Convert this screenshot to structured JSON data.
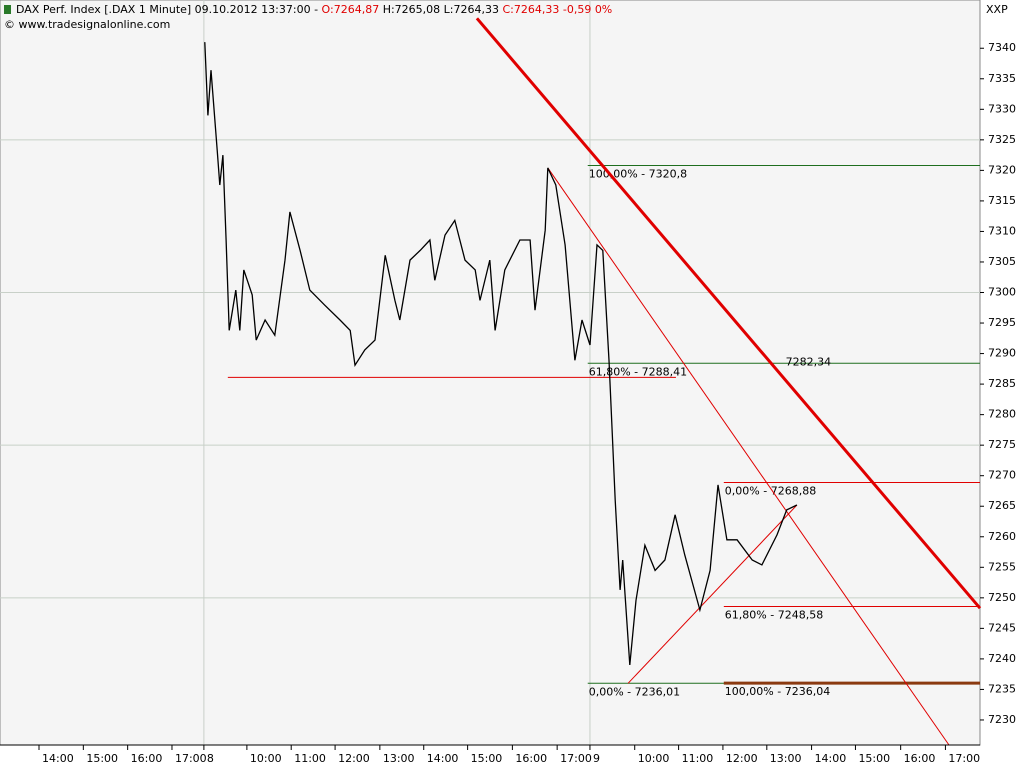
{
  "chart_data": {
    "type": "line",
    "title": "DAX Perf. Index [.DAX  1 Minute] 09.10.2012 13:37:00 - ",
    "ohlc": [
      {
        "text": "O:7264,87",
        "color": "#e00000"
      },
      {
        "text": " H:7265,08 L:7264,33 ",
        "color": "#000000"
      },
      {
        "text": "C:7264,33 -0,59 0%",
        "color": "#e00000"
      }
    ],
    "copyright": "© www.tradesignalonline.com",
    "symbol_label": "XXP",
    "color": "#000000",
    "x": [
      3.74,
      3.81,
      3.88,
      4.02,
      4.08,
      4.15,
      4.22,
      4.29,
      4.44,
      4.53,
      4.62,
      4.81,
      4.9,
      5.1,
      5.32,
      5.55,
      5.66,
      5.89,
      6.11,
      6.45,
      6.79,
      7.02,
      7.13,
      7.35,
      7.58,
      7.81,
      8.03,
      8.14,
      8.37,
      8.6,
      8.82,
      8.93,
      9.16,
      9.38,
      9.61,
      9.84,
      9.95,
      10.17,
      10.29,
      10.51,
      10.85,
      11.08,
      11.19,
      11.42,
      11.48,
      11.66,
      11.87,
      12.09,
      12.25,
      12.43,
      12.59,
      12.72,
      12.86,
      12.93,
      13.0,
      13.11,
      13.17,
      13.33,
      13.47,
      13.67,
      13.9,
      14.12,
      14.35,
      14.57,
      14.91,
      15.14,
      15.32,
      15.52,
      15.75,
      16.09,
      16.31,
      16.65,
      16.87,
      17.1
    ],
    "values": [
      7341.0,
      7329.0,
      7336.4,
      7323.3,
      7317.6,
      7322.5,
      7308.6,
      7293.8,
      7300.4,
      7293.8,
      7303.7,
      7299.6,
      7292.2,
      7295.5,
      7293.0,
      7305.3,
      7313.2,
      7306.9,
      7300.4,
      7297.9,
      7295.5,
      7293.8,
      7288.1,
      7290.6,
      7292.2,
      7306.1,
      7298.7,
      7295.5,
      7305.3,
      7306.9,
      7308.6,
      7302.0,
      7309.4,
      7311.8,
      7305.3,
      7303.7,
      7298.7,
      7305.3,
      7293.8,
      7303.7,
      7308.6,
      7308.6,
      7297.1,
      7310.2,
      7320.4,
      7317.6,
      7307.8,
      7288.9,
      7295.5,
      7291.4,
      7307.8,
      7306.9,
      7288.9,
      7277.5,
      7266.0,
      7251.3,
      7256.2,
      7239.0,
      7249.6,
      7258.6,
      7254.5,
      7256.2,
      7263.6,
      7257.0,
      7248.0,
      7254.5,
      7268.5,
      7259.5,
      7259.5,
      7256.2,
      7255.4,
      7260.3,
      7264.4,
      7265.2
    ],
    "xlim": [
      -0.88,
      21.23
    ],
    "ylim": [
      7225.9,
      7347.9
    ],
    "yticks": [
      7230,
      7235,
      7240,
      7245,
      7250,
      7255,
      7260,
      7265,
      7270,
      7275,
      7280,
      7285,
      7290,
      7295,
      7300,
      7305,
      7310,
      7315,
      7320,
      7325,
      7330,
      7335,
      7340
    ],
    "xticks": [
      {
        "value": 0,
        "label": "14:00"
      },
      {
        "value": 1,
        "label": "15:00"
      },
      {
        "value": 2,
        "label": "16:00"
      },
      {
        "value": 3,
        "label": "17:00"
      },
      {
        "value": 3.72,
        "label": "8"
      },
      {
        "value": 4.69,
        "label": "10:00"
      },
      {
        "value": 5.69,
        "label": "11:00"
      },
      {
        "value": 6.68,
        "label": "12:00"
      },
      {
        "value": 7.69,
        "label": "13:00"
      },
      {
        "value": 8.68,
        "label": "14:00"
      },
      {
        "value": 9.67,
        "label": "15:00"
      },
      {
        "value": 10.68,
        "label": "16:00"
      },
      {
        "value": 11.69,
        "label": "17:00"
      },
      {
        "value": 12.43,
        "label": "9"
      },
      {
        "value": 13.44,
        "label": "10:00"
      },
      {
        "value": 14.43,
        "label": "11:00"
      },
      {
        "value": 15.43,
        "label": "12:00"
      },
      {
        "value": 16.42,
        "label": "13:00"
      },
      {
        "value": 17.43,
        "label": "14:00"
      },
      {
        "value": 18.42,
        "label": "15:00"
      },
      {
        "value": 19.44,
        "label": "16:00"
      },
      {
        "value": 20.45,
        "label": "17:00"
      }
    ],
    "ygrid": [
      7250,
      7275,
      7300,
      7325
    ],
    "xgrid": [
      3.72,
      12.43
    ],
    "levels": [
      {
        "label": "100,00% - 7320,8",
        "value": 7320.8,
        "x_start": 12.38,
        "color": "#1e6e1e",
        "width": 1
      },
      {
        "label": "61,80% - 7288,41",
        "value": 7288.41,
        "x_start": 12.38,
        "color": "#1e6e1e",
        "width": 1
      },
      {
        "label": "0,00% - 7236,01",
        "value": 7236.01,
        "x_start": 12.38,
        "color": "#1e6e1e",
        "width": 1
      },
      {
        "label": "0,00% - 7268,88",
        "value": 7268.88,
        "x_start": 15.45,
        "color": "#e00000",
        "width": 1
      },
      {
        "label": "61,80% - 7248,58",
        "value": 7248.58,
        "x_start": 15.45,
        "color": "#e00000",
        "width": 1
      },
      {
        "label": "100,00% - 7236,04",
        "value": 7236.04,
        "x_start": 15.45,
        "color": "#8b3a10",
        "width": 3
      }
    ],
    "support": {
      "value": 7286.1,
      "x": [
        4.26,
        14.37
      ],
      "color": "#e00000"
    },
    "trendlines": [
      {
        "x": [
          9.88,
          21.23
        ],
        "values": [
          7344.9,
          7248.3
        ],
        "color": "#e00000",
        "width": 3,
        "label": "7282,34"
      },
      {
        "x": [
          11.48,
          20.53
        ],
        "values": [
          7320.4,
          7225.9
        ],
        "color": "#e00000",
        "width": 1
      },
      {
        "x": [
          13.29,
          17.1
        ],
        "values": [
          7236.0,
          7265.2
        ],
        "color": "#e00000",
        "width": 1
      }
    ]
  }
}
